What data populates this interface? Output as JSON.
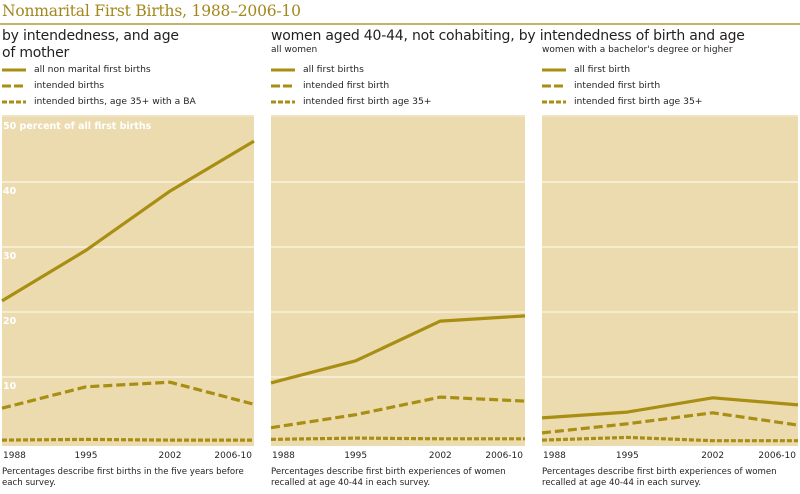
{
  "title": "Nonmarital First Births, 1988–2006-10",
  "colors": {
    "accent": "#a4871b",
    "line": "#a88e12",
    "panel_bg": "#ebdbaf",
    "grid": "#fbf5e6"
  },
  "panels": [
    {
      "heading": "by intendedness, and age of mother",
      "heading_lines": [
        "by intendedness, and age",
        "of mother"
      ],
      "subheading": "",
      "legend": [
        "all non marital first births",
        "intended births",
        "intended births, age 35+ with a BA"
      ],
      "note": "Percentages describe first births in the five years before each survey."
    },
    {
      "heading": "women aged 40-44, not cohabiting, by intendedness of birth and age",
      "subheading": "all women",
      "legend": [
        "all first births",
        "intended first birth",
        "intended first birth age 35+"
      ],
      "note": "Percentages describe first birth experiences of women recalled at age 40-44 in each survey."
    },
    {
      "heading": "",
      "subheading": "women with a bachelor's degree or higher",
      "legend": [
        "all first birth",
        "intended first birth",
        "intended first birth age 35+"
      ],
      "note": "Percentages describe first birth experiences of women recalled at age 40-44 in each survey."
    }
  ],
  "chart_data": [
    {
      "type": "line",
      "title": "by intendedness, and age of mother",
      "categories": [
        "1988",
        "1995",
        "2002",
        "2006-10"
      ],
      "ylabel": "percent of all first births",
      "ylim": [
        0,
        50
      ],
      "yticks": [
        10,
        20,
        30,
        40,
        50
      ],
      "ytick_labels": [
        "10",
        "20",
        "30",
        "40",
        "50 percent of all first births"
      ],
      "grid": true,
      "legend_position": "top-left",
      "series": [
        {
          "name": "all non marital first births",
          "style": "solid",
          "values": [
            21.7,
            29.5,
            38.6,
            46.3
          ]
        },
        {
          "name": "intended births",
          "style": "dashed",
          "values": [
            5.2,
            8.5,
            9.2,
            5.8
          ]
        },
        {
          "name": "intended births, age 35+ with a BA",
          "style": "dotted",
          "values": [
            0.3,
            0.4,
            0.3,
            0.3
          ]
        }
      ],
      "note": "Percentages describe first births in the five years before each survey."
    },
    {
      "type": "line",
      "title": "all women",
      "categories": [
        "1988",
        "1995",
        "2002",
        "2006-10"
      ],
      "ylim": [
        0,
        50
      ],
      "yticks": [
        10,
        20,
        30,
        40,
        50
      ],
      "grid": true,
      "legend_position": "top-left",
      "series": [
        {
          "name": "all first births",
          "style": "solid",
          "values": [
            9.1,
            12.5,
            18.6,
            19.4
          ]
        },
        {
          "name": "intended first birth",
          "style": "dashed",
          "values": [
            2.2,
            4.2,
            6.9,
            6.3
          ]
        },
        {
          "name": "intended first birth age 35+",
          "style": "dotted",
          "values": [
            0.4,
            0.6,
            0.5,
            0.5
          ]
        }
      ],
      "note": "Percentages describe first birth experiences of women recalled at age 40-44 in each survey."
    },
    {
      "type": "line",
      "title": "women with a bachelor's degree or higher",
      "categories": [
        "1988",
        "1995",
        "2002",
        "2006-10"
      ],
      "ylim": [
        0,
        50
      ],
      "yticks": [
        10,
        20,
        30,
        40,
        50
      ],
      "grid": true,
      "legend_position": "top-left",
      "series": [
        {
          "name": "all first birth",
          "style": "solid",
          "values": [
            3.7,
            4.6,
            6.8,
            5.7
          ]
        },
        {
          "name": "intended first birth",
          "style": "dashed",
          "values": [
            1.4,
            2.8,
            4.5,
            2.6
          ]
        },
        {
          "name": "intended first birth age 35+",
          "style": "dotted",
          "values": [
            0.3,
            0.7,
            0.2,
            0.2
          ]
        }
      ],
      "note": "Percentages describe first birth experiences of women recalled at age 40-44 in each survey."
    }
  ]
}
